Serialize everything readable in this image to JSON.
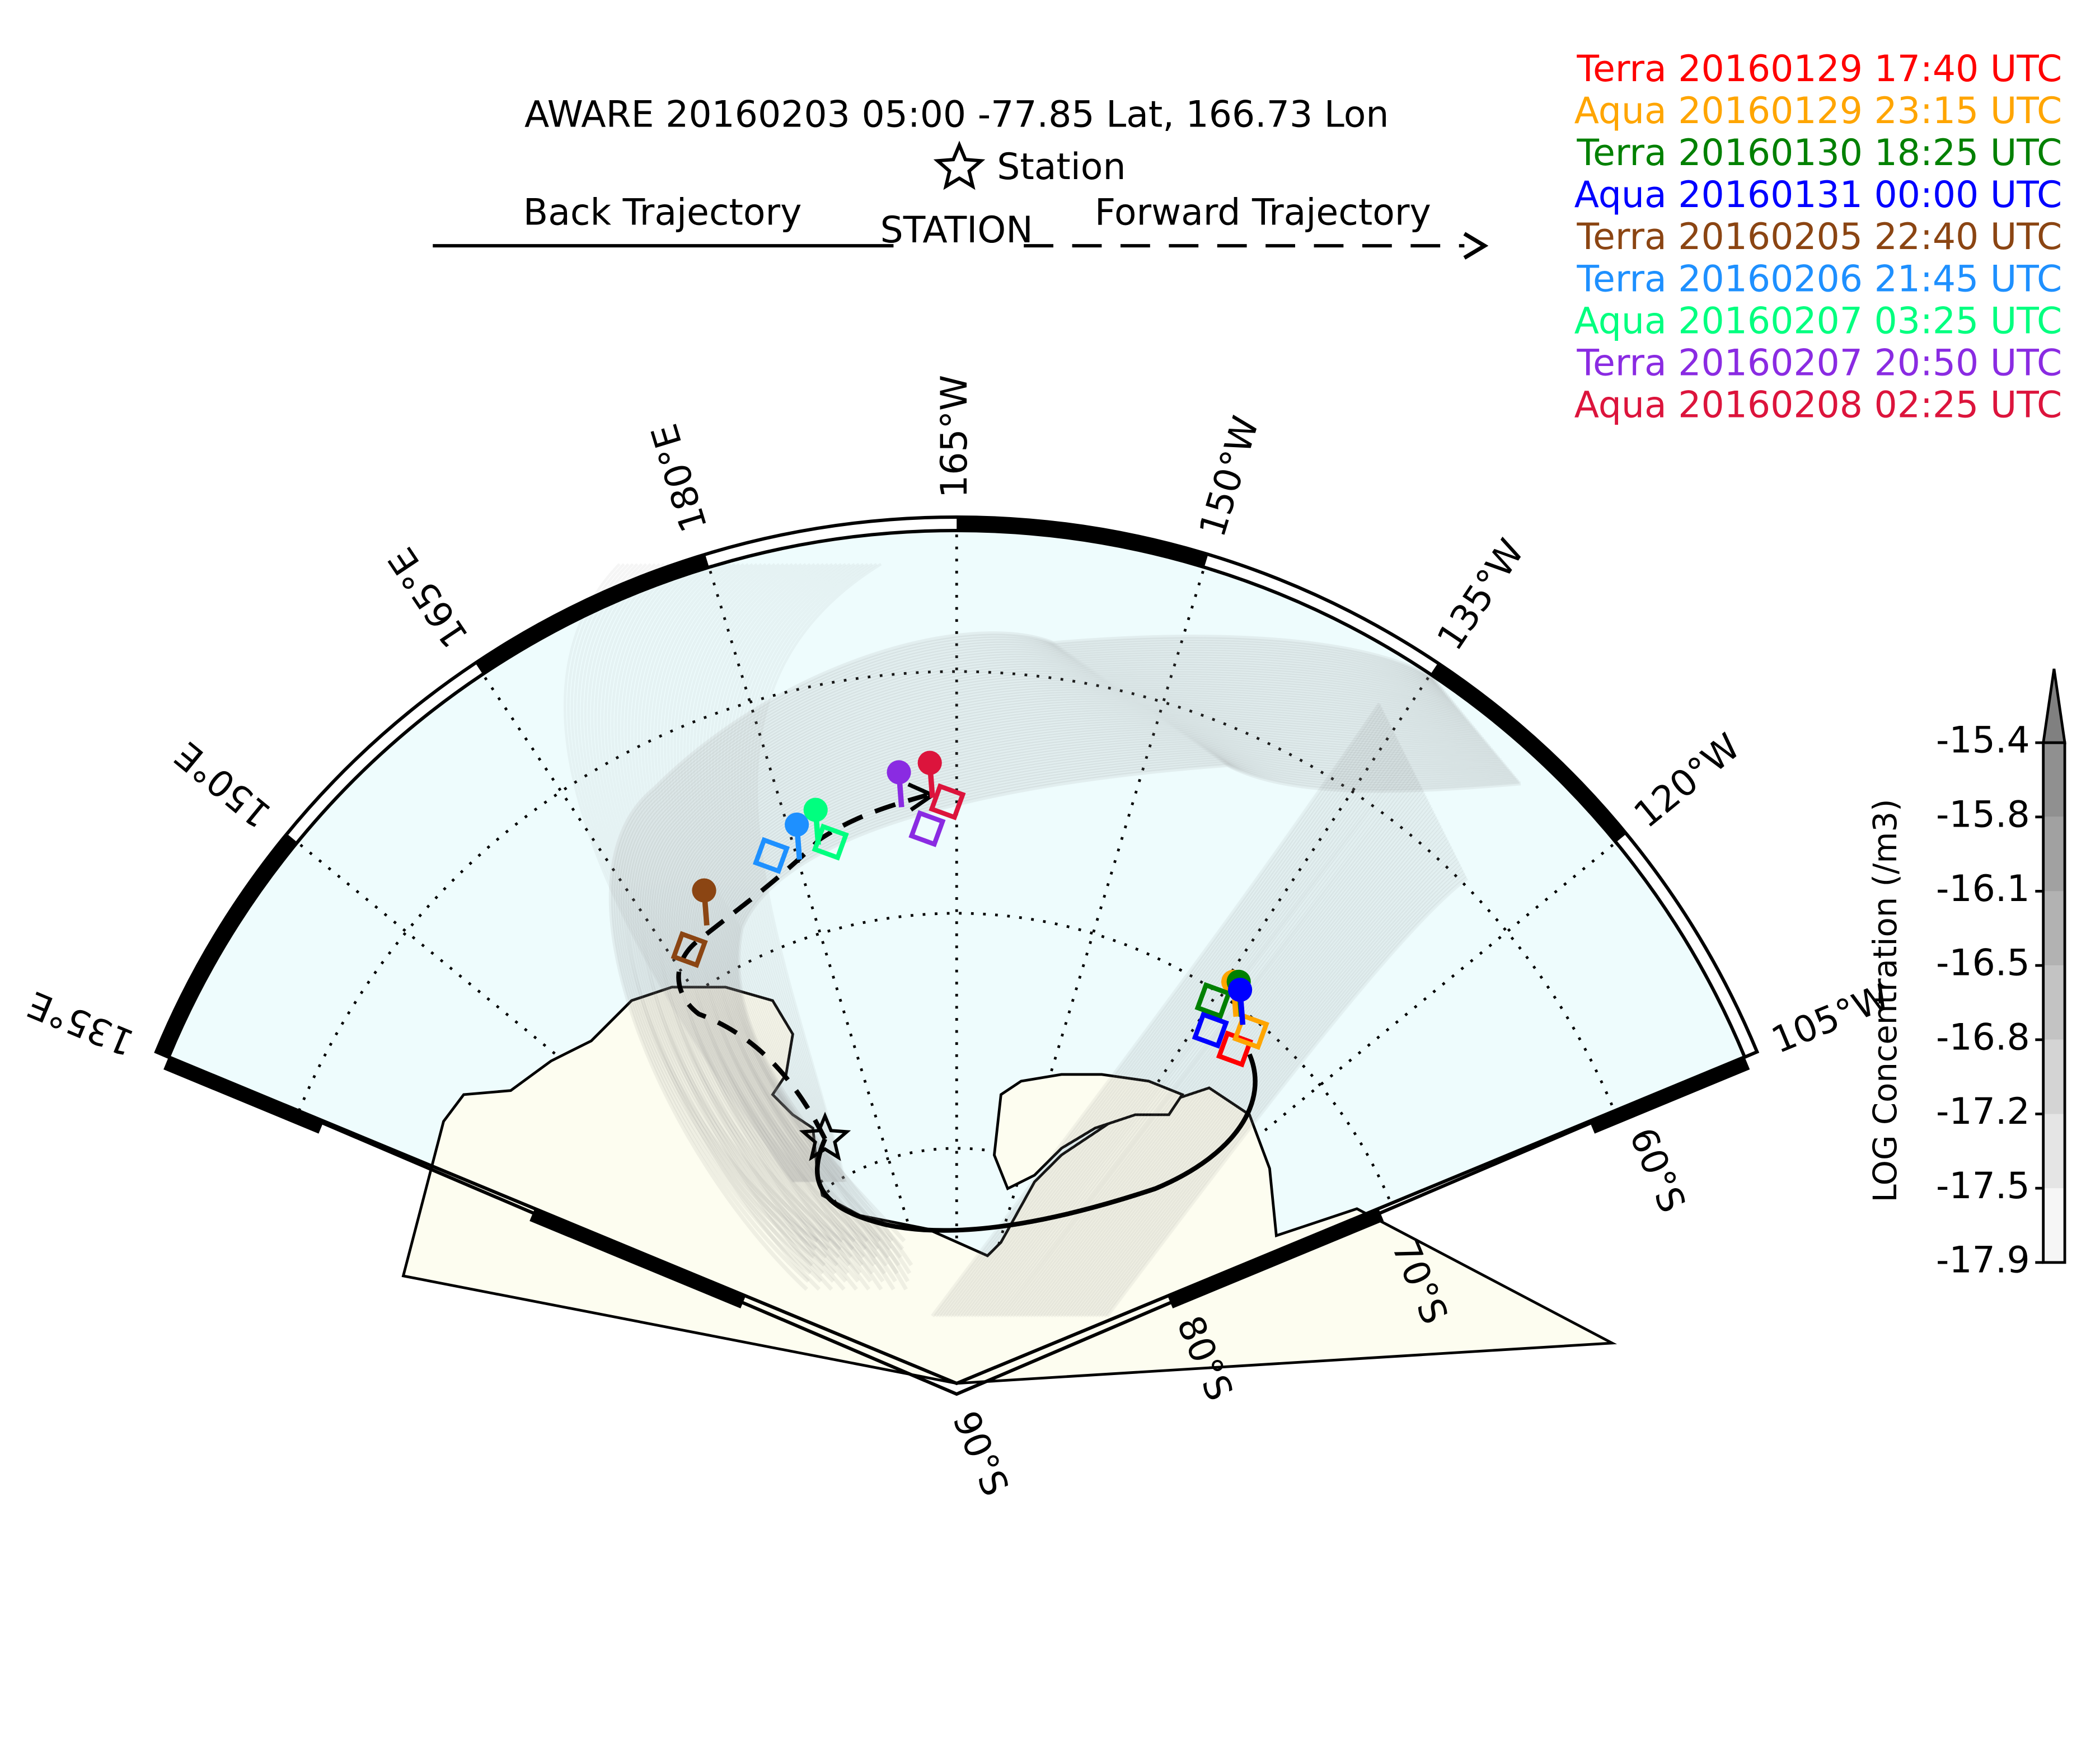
{
  "title": "AWARE 20160203 05:00  -77.85 Lat,  166.73 Lon",
  "station_legend": "Station",
  "back_trajectory": "Back Trajectory",
  "station_label": "STATION",
  "forward_trajectory": "Forward Trajectory",
  "overpasses": [
    {
      "label": "Terra 20160129 17:40 UTC",
      "color": "#ff0000"
    },
    {
      "label": "Aqua 20160129 23:15 UTC",
      "color": "#ffa500"
    },
    {
      "label": "Terra 20160130 18:25 UTC",
      "color": "#008000"
    },
    {
      "label": "Aqua 20160131 00:00 UTC",
      "color": "#0000ff"
    },
    {
      "label": "Terra 20160205 22:40 UTC",
      "color": "#8b4513"
    },
    {
      "label": "Terra 20160206 21:45 UTC",
      "color": "#1e90ff"
    },
    {
      "label": "Aqua 20160207 03:25 UTC",
      "color": "#00ff7f"
    },
    {
      "label": "Terra 20160207 20:50 UTC",
      "color": "#8a2be2"
    },
    {
      "label": "Aqua 20160208 02:25 UTC",
      "color": "#dc143c"
    }
  ],
  "longitude_labels": [
    "135°E",
    "150°E",
    "165°E",
    "180°E",
    "165°W",
    "150°W",
    "135°W",
    "120°W",
    "105°W"
  ],
  "latitude_labels": [
    "60°S",
    "70°S",
    "80°S",
    "90°S"
  ],
  "colorbar": {
    "label": "LOG Concentration (/m3)",
    "ticks": [
      -15.4,
      -15.8,
      -16.1,
      -16.5,
      -16.8,
      -17.2,
      -17.5,
      -17.9
    ]
  }
}
